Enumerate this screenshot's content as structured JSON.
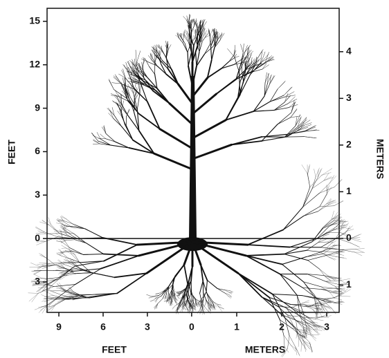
{
  "chart_data": {
    "type": "illustration",
    "ylabel": "FEET",
    "y2label": "METERS",
    "xlabel": "FEET",
    "x2label": "METERS",
    "ylim": [
      -5.1,
      15.9
    ],
    "yticks": [
      15,
      12,
      9,
      6,
      3,
      0,
      {
        "value": -3,
        "label": "3"
      }
    ],
    "y2lim": [
      -1.585,
      4.93
    ],
    "y2ticks": [
      4,
      3,
      2,
      1,
      0,
      {
        "value": -1,
        "label": "1"
      }
    ],
    "xlim": [
      -9.8,
      10
    ],
    "xticks": [
      {
        "value": -9,
        "label": "9"
      },
      {
        "value": -6,
        "label": "6"
      },
      {
        "value": -3,
        "label": "3"
      },
      0
    ],
    "x2lim": [
      -3.215,
      3.277
    ],
    "x2ticks": [
      1,
      2,
      3
    ]
  }
}
